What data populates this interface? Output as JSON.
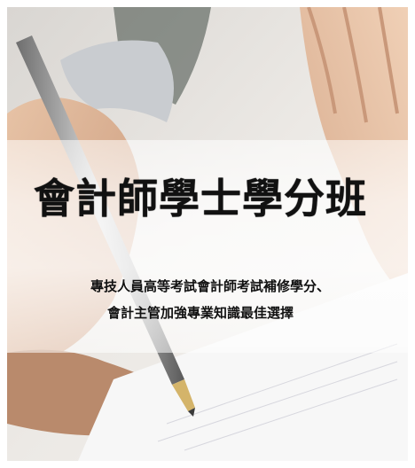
{
  "title": "會計師學士學分班",
  "subtitle_line1": "專技人員高等考試會計師考試補修學分、",
  "subtitle_line2": "會計主管加強專業知識最佳選擇",
  "icons": {
    "pen": "fountain-pen-icon",
    "hand_left": "writing-hand",
    "hand_right": "resting-hand"
  }
}
